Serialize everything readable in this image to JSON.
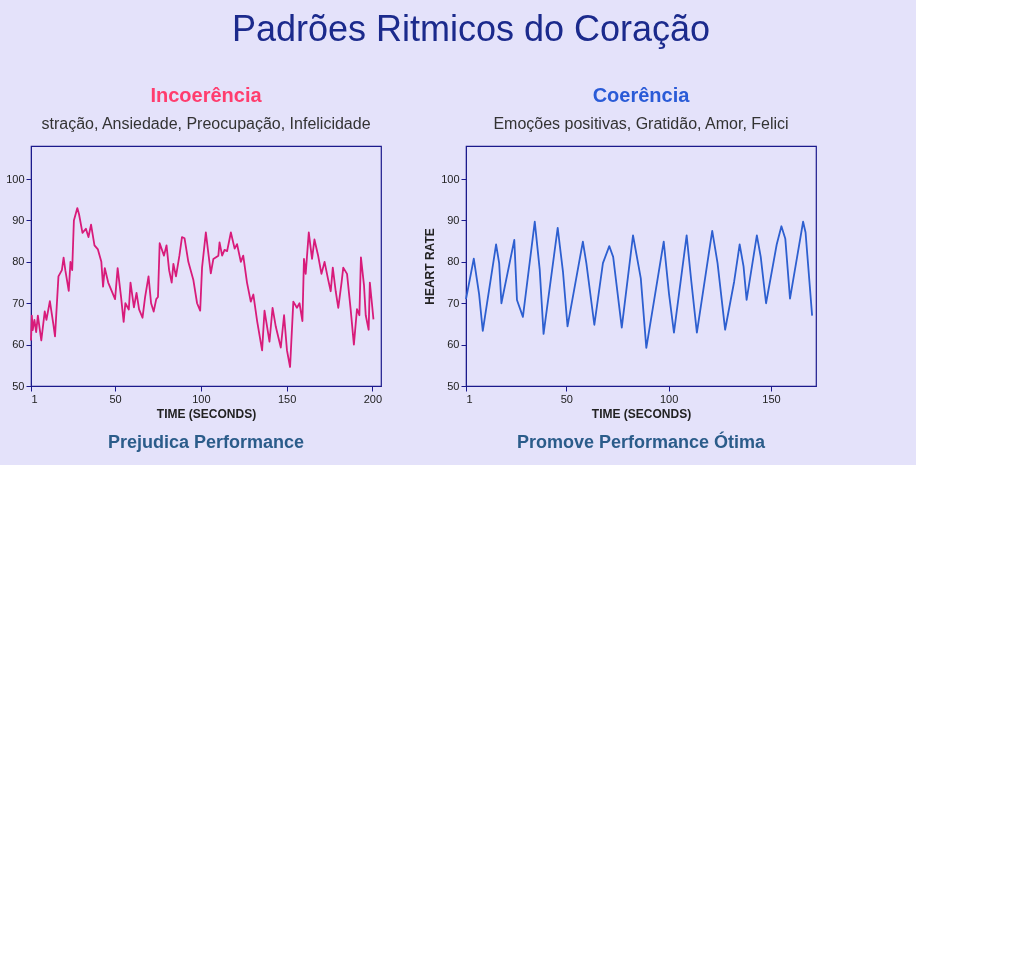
{
  "chart_data": [
    {
      "type": "other",
      "title": "Padrões Ritmicos do Coração"
    },
    {
      "type": "line",
      "title": "Incoerência",
      "subtitle": "stração, Ansiedade, Preocupação, Infelicidade",
      "xlabel": "TIME (SECONDS)",
      "annotations": [
        "Prejudica Performance"
      ],
      "xlim": [
        1,
        205
      ],
      "ylim": [
        50,
        108
      ],
      "xticks": [
        1,
        50,
        100,
        150,
        200
      ],
      "yticks": [
        50,
        60,
        70,
        80,
        90,
        100
      ],
      "grid": false,
      "marker": "none",
      "line_style": "solid",
      "series": [
        {
          "color": "#d81b7a",
          "x": [
            1,
            1.5,
            2,
            3,
            4,
            5,
            7,
            9,
            10,
            12,
            14,
            15,
            17,
            19,
            20,
            21,
            23,
            24,
            25,
            26,
            28,
            29,
            31,
            33,
            34.5,
            36,
            38,
            40,
            42,
            43,
            44,
            46,
            48,
            50,
            51.5,
            53.5,
            55,
            56,
            58,
            59,
            61,
            62.5,
            64,
            66,
            67.5,
            69.5,
            71,
            72.5,
            74,
            75,
            76,
            78.5,
            80,
            81.5,
            83,
            84,
            85.5,
            87.5,
            89,
            90.5,
            92.7,
            95.6,
            97.8,
            99.6,
            100.7,
            102.9,
            105.8,
            107.3,
            110.2,
            110.9,
            112.4,
            113.8,
            115.3,
            117.5,
            119.7,
            121.1,
            123.3,
            124.7,
            126.9,
            129.1,
            130.6,
            132.8,
            135.7,
            137.1,
            140,
            141.8,
            143.7,
            146.6,
            148.5,
            150.2,
            152,
            153.9,
            156,
            157.5,
            159.2,
            160.1,
            161.1,
            162.9,
            164.8,
            166.2,
            168.4,
            170.3,
            172.1,
            174.2,
            175.7,
            176.9,
            178.6,
            180.1,
            182,
            183,
            185.2,
            187.3,
            189.2,
            191,
            192.4,
            193.3,
            195.1,
            196.1,
            197.8,
            198.5,
            199.7,
            200.6
          ],
          "values": [
            61,
            67,
            63.5,
            66,
            63,
            67,
            61,
            68,
            66,
            70.5,
            65,
            62,
            76.5,
            78,
            81,
            78,
            73,
            80,
            78,
            90,
            93,
            91.5,
            87,
            88,
            86,
            89,
            84,
            83,
            80,
            74,
            78.5,
            75,
            73,
            71,
            78.5,
            71.5,
            65.5,
            70,
            68.5,
            75,
            69,
            72.5,
            68.5,
            66.5,
            71.5,
            76.5,
            70,
            68,
            71,
            71.5,
            84.5,
            81.5,
            84,
            78,
            75,
            79.5,
            76.5,
            81.5,
            86,
            85.7,
            80,
            75.7,
            70,
            68.2,
            78.6,
            87.1,
            77.2,
            80.7,
            81.5,
            84.7,
            81.5,
            82.9,
            82.6,
            87.1,
            83.2,
            84.3,
            80,
            81.5,
            75,
            70.4,
            72.1,
            65.7,
            58.6,
            68.2,
            60.7,
            68.9,
            64.3,
            59.3,
            67.1,
            58.6,
            54.6,
            70.4,
            68.9,
            70,
            65.7,
            80.7,
            77.1,
            87.1,
            80.7,
            85.4,
            81.4,
            77.1,
            80,
            75.7,
            72.9,
            78.6,
            72.9,
            68.9,
            75,
            78.6,
            77.1,
            68.6,
            60,
            68.6,
            67.1,
            81.1,
            74.3,
            67.1,
            63.6,
            75,
            70,
            66.1
          ]
        }
      ]
    },
    {
      "type": "line",
      "title": "Coerência",
      "subtitle": "Emoções positivas, Gratidão, Amor, Felici",
      "xlabel": "TIME (SECONDS)",
      "ylabel": "HEART RATE",
      "annotations": [
        "Promove Performance Ótima"
      ],
      "xlim": [
        1,
        172
      ],
      "ylim": [
        50,
        108
      ],
      "xticks": [
        1,
        50,
        100,
        150
      ],
      "yticks": [
        50,
        60,
        70,
        80,
        90,
        100
      ],
      "grid": false,
      "marker": "none",
      "line_style": "solid",
      "series": [
        {
          "color": "#2d5fd0",
          "x": [
            1,
            4.8,
            7.4,
            9.2,
            15.7,
            17.2,
            18.3,
            24.6,
            25.9,
            28.8,
            34.6,
            37,
            38.9,
            45.8,
            48.4,
            50.6,
            58.1,
            59.8,
            63.7,
            67.9,
            71,
            72.9,
            77.1,
            82.6,
            86.4,
            89.1,
            97.6,
            100.2,
            102.6,
            108.8,
            111.1,
            113.8,
            121.3,
            123.9,
            127.6,
            132,
            134.7,
            136.6,
            138.1,
            143.1,
            145,
            147.6,
            152.8,
            155.1,
            157,
            159.3,
            165.7,
            166.9,
            170.1
          ],
          "values": [
            71,
            80.8,
            72.2,
            63.3,
            84.2,
            79.7,
            70,
            85.3,
            70.8,
            66.7,
            89.7,
            78.2,
            62.6,
            88.2,
            77.5,
            64.4,
            84.9,
            79.7,
            64.8,
            79.7,
            83.8,
            81.2,
            64.1,
            86.4,
            76,
            59.2,
            84.9,
            72.2,
            62.9,
            86.4,
            75.2,
            62.9,
            87.5,
            79.7,
            63.6,
            75.2,
            84.2,
            78.9,
            70.8,
            86.4,
            81.2,
            70,
            84.2,
            88.6,
            85.6,
            71.1,
            89.7,
            87.1,
            67
          ]
        }
      ]
    }
  ]
}
